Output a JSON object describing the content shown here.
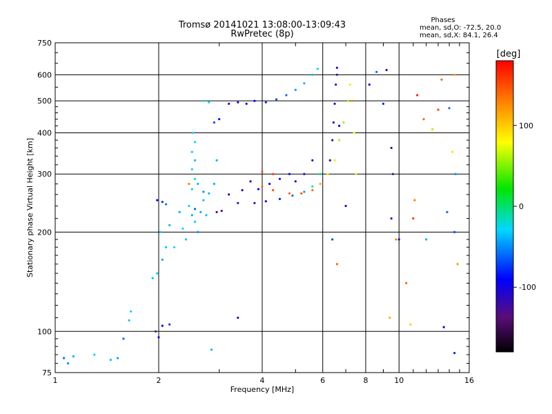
{
  "chart_data": {
    "type": "scatter",
    "title": "Tromsø 20141021 13:08:00-13:09:43",
    "subtitle": "RwPretec (8p)",
    "xlabel": "Frequency [MHz]",
    "ylabel": "Stationary phase Virtual Height [km]",
    "x_scale": "log",
    "y_scale": "log",
    "xlim": [
      1,
      16
    ],
    "ylim": [
      75,
      750
    ],
    "x_ticks": [
      1,
      2,
      4,
      6,
      8,
      10,
      16
    ],
    "x_tick_labels": [
      "1",
      "2",
      "4",
      "6",
      "8",
      "10",
      "16"
    ],
    "y_ticks": [
      75,
      100,
      200,
      300,
      400,
      500,
      600,
      750
    ],
    "y_tick_labels": [
      "75",
      "100",
      "200",
      "300",
      "400",
      "500",
      "600",
      "750"
    ],
    "grid": true,
    "stats": {
      "heading": "Phases",
      "line_o": "mean, sd,O: -72.5, 20.0",
      "line_x": "mean, sd,X:  84.1, 26.4"
    },
    "colorbar": {
      "label": "[deg]",
      "range": [
        -180,
        180
      ],
      "ticks": [
        100,
        0,
        -100
      ],
      "tick_labels": [
        "100",
        "0",
        "-100"
      ]
    },
    "series": [
      {
        "points": [
          [
            1.06,
            83,
            -60
          ],
          [
            1.09,
            80,
            -50
          ],
          [
            1.13,
            84,
            -40
          ],
          [
            1.3,
            85,
            -30
          ],
          [
            1.45,
            82,
            -35
          ],
          [
            1.52,
            83,
            -45
          ],
          [
            1.58,
            95,
            -60
          ],
          [
            1.64,
            108,
            -35
          ],
          [
            1.66,
            115,
            -30
          ],
          [
            1.96,
            100,
            -130
          ],
          [
            2.0,
            96,
            -100
          ],
          [
            2.05,
            104,
            -90
          ],
          [
            1.98,
            250,
            -100
          ],
          [
            2.05,
            247,
            -75
          ],
          [
            2.1,
            243,
            -55
          ],
          [
            1.92,
            145,
            -35
          ],
          [
            1.98,
            150,
            -30
          ],
          [
            2.05,
            165,
            -45
          ],
          [
            2.1,
            180,
            -35
          ],
          [
            2.02,
            200,
            -35
          ],
          [
            2.15,
            210,
            -40
          ],
          [
            2.22,
            180,
            -30
          ],
          [
            2.3,
            230,
            -40
          ],
          [
            2.35,
            205,
            -30
          ],
          [
            2.4,
            190,
            -35
          ],
          [
            2.45,
            240,
            -30
          ],
          [
            2.5,
            225,
            -40
          ],
          [
            2.55,
            215,
            -30
          ],
          [
            2.6,
            200,
            -50
          ],
          [
            2.65,
            230,
            -40
          ],
          [
            2.75,
            225,
            -35
          ],
          [
            2.7,
            250,
            -35
          ],
          [
            2.5,
            270,
            -30
          ],
          [
            2.55,
            290,
            -25
          ],
          [
            2.5,
            310,
            -30
          ],
          [
            2.55,
            330,
            -35
          ],
          [
            2.5,
            350,
            -30
          ],
          [
            2.55,
            375,
            -25
          ],
          [
            2.52,
            400,
            -30
          ],
          [
            2.45,
            280,
            130
          ],
          [
            2.6,
            280,
            -40
          ],
          [
            2.7,
            265,
            -50
          ],
          [
            2.8,
            262,
            -40
          ],
          [
            2.55,
            235,
            -60
          ],
          [
            2.9,
            280,
            -40
          ],
          [
            2.95,
            330,
            -40
          ],
          [
            2.95,
            230,
            -120
          ],
          [
            2.7,
            500,
            -25
          ],
          [
            2.8,
            495,
            -30
          ],
          [
            2.9,
            430,
            -70
          ],
          [
            3.0,
            440,
            -90
          ],
          [
            3.2,
            490,
            -110
          ],
          [
            3.4,
            495,
            -100
          ],
          [
            3.6,
            490,
            -95
          ],
          [
            3.8,
            500,
            -90
          ],
          [
            4.1,
            495,
            -80
          ],
          [
            4.4,
            505,
            -70
          ],
          [
            4.7,
            520,
            -60
          ],
          [
            5.0,
            540,
            -45
          ],
          [
            5.3,
            565,
            -40
          ],
          [
            5.6,
            600,
            -35
          ],
          [
            5.8,
            625,
            -30
          ],
          [
            3.4,
            110,
            -110
          ],
          [
            2.15,
            105,
            -75
          ],
          [
            2.85,
            88,
            -40
          ],
          [
            3.05,
            232,
            -130
          ],
          [
            3.4,
            245,
            -120
          ],
          [
            3.8,
            245,
            -110
          ],
          [
            4.1,
            248,
            -95
          ],
          [
            4.5,
            252,
            -80
          ],
          [
            4.9,
            258,
            -60
          ],
          [
            5.3,
            265,
            -45
          ],
          [
            5.6,
            275,
            -20
          ],
          [
            5.9,
            300,
            -10
          ],
          [
            3.2,
            260,
            -110
          ],
          [
            3.5,
            268,
            -105
          ],
          [
            3.7,
            285,
            -95
          ],
          [
            3.9,
            270,
            -90
          ],
          [
            4.2,
            280,
            -95
          ],
          [
            4.5,
            290,
            -100
          ],
          [
            4.8,
            300,
            -90
          ],
          [
            5.0,
            285,
            -105
          ],
          [
            5.3,
            300,
            -110
          ],
          [
            5.6,
            330,
            -110
          ],
          [
            4.0,
            275,
            140
          ],
          [
            4.3,
            268,
            150
          ],
          [
            4.8,
            262,
            145
          ],
          [
            5.2,
            262,
            150
          ],
          [
            5.6,
            268,
            135
          ],
          [
            5.9,
            280,
            110
          ],
          [
            6.2,
            300,
            90
          ],
          [
            6.5,
            330,
            70
          ],
          [
            6.7,
            380,
            60
          ],
          [
            6.9,
            430,
            55
          ],
          [
            7.1,
            500,
            55
          ],
          [
            7.2,
            560,
            70
          ],
          [
            4.0,
            305,
            150
          ],
          [
            4.3,
            300,
            160
          ],
          [
            6.3,
            330,
            -110
          ],
          [
            6.4,
            380,
            -120
          ],
          [
            6.45,
            430,
            -110
          ],
          [
            6.5,
            490,
            -115
          ],
          [
            6.55,
            560,
            -120
          ],
          [
            6.6,
            630,
            -115
          ],
          [
            6.4,
            190,
            -70
          ],
          [
            6.6,
            160,
            140
          ],
          [
            7.0,
            240,
            -100
          ],
          [
            7.3,
            500,
            130
          ],
          [
            8.2,
            560,
            -100
          ],
          [
            8.6,
            612,
            -60
          ],
          [
            9.2,
            620,
            -100
          ],
          [
            9.0,
            490,
            -80
          ],
          [
            9.5,
            360,
            -120
          ],
          [
            9.6,
            300,
            -130
          ],
          [
            9.5,
            220,
            -120
          ],
          [
            9.8,
            190,
            130
          ],
          [
            10.0,
            190,
            -110
          ],
          [
            10.5,
            140,
            140
          ],
          [
            9.4,
            110,
            110
          ],
          [
            10.8,
            105,
            100
          ],
          [
            11.0,
            220,
            160
          ],
          [
            11.3,
            520,
            170
          ],
          [
            11.8,
            440,
            140
          ],
          [
            13.0,
            470,
            155
          ],
          [
            13.3,
            580,
            140
          ],
          [
            14.0,
            475,
            -60
          ],
          [
            14.5,
            600,
            120
          ],
          [
            13.8,
            230,
            -60
          ],
          [
            14.6,
            300,
            -50
          ],
          [
            14.3,
            350,
            90
          ],
          [
            14.5,
            200,
            -70
          ],
          [
            14.8,
            160,
            120
          ],
          [
            13.5,
            103,
            -100
          ],
          [
            14.5,
            86,
            -80
          ],
          [
            12.5,
            410,
            60
          ],
          [
            12.0,
            190,
            -40
          ],
          [
            11.1,
            250,
            130
          ],
          [
            6.6,
            600,
            -120
          ],
          [
            6.7,
            420,
            -90
          ],
          [
            7.4,
            400,
            80
          ],
          [
            7.5,
            300,
            70
          ]
        ]
      }
    ]
  }
}
